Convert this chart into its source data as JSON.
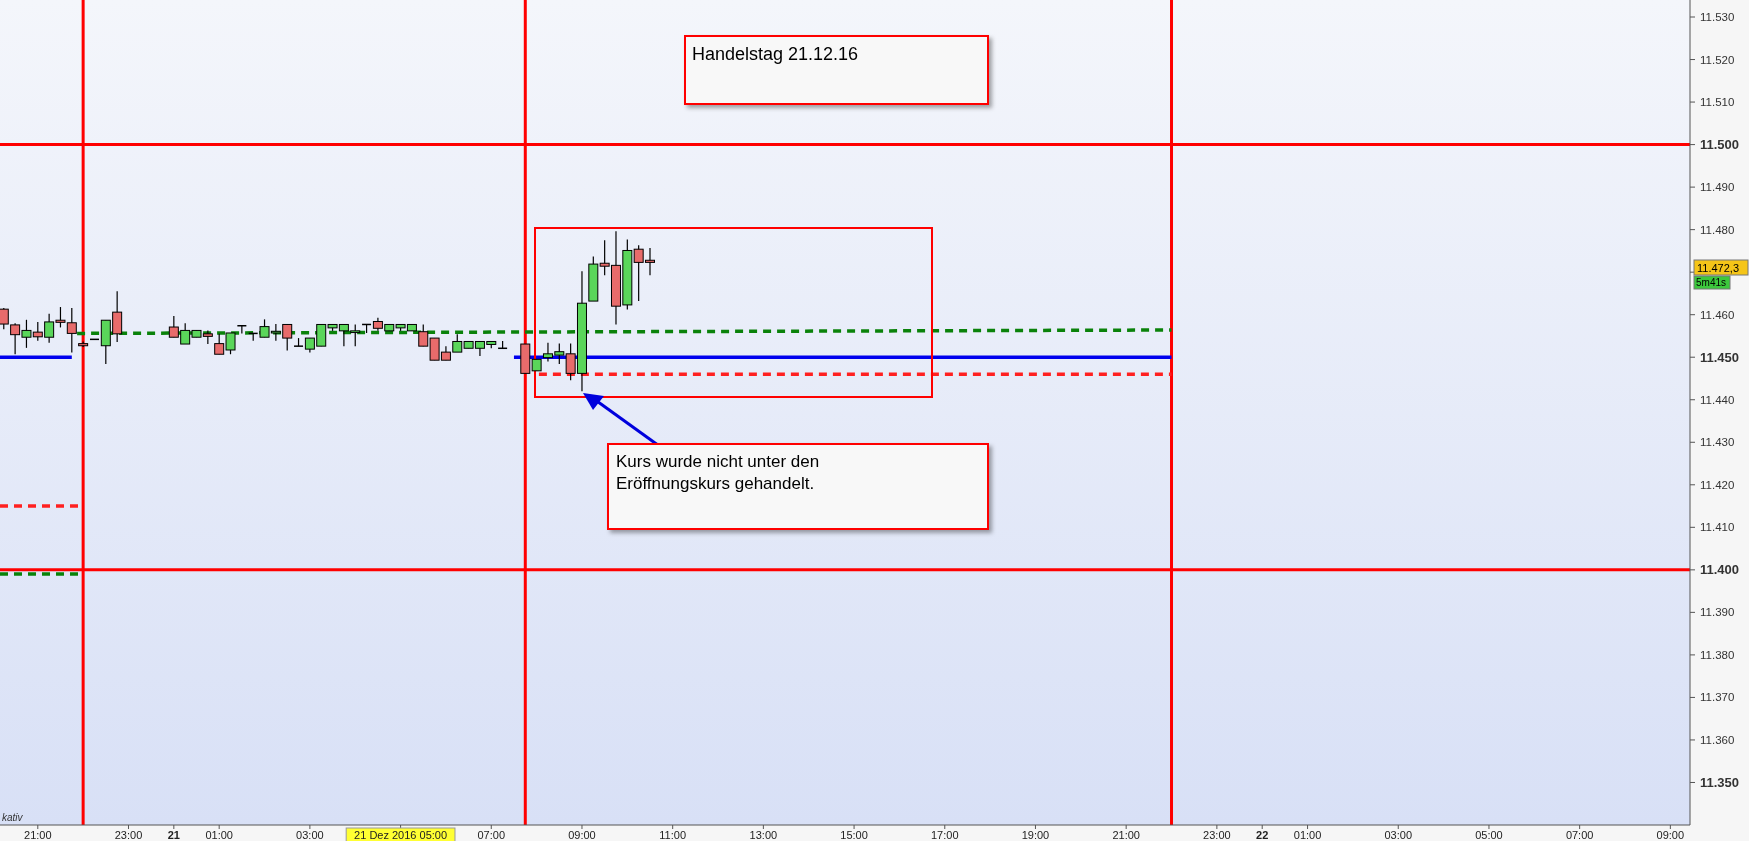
{
  "chart_data": {
    "type": "candlestick",
    "x": [
      "2016-12-20T20:15",
      "2016-12-20T20:30",
      "2016-12-20T20:45",
      "2016-12-20T21:00",
      "2016-12-20T21:15",
      "2016-12-20T21:30",
      "2016-12-20T21:45",
      "2016-12-20T22:00",
      "2016-12-20T22:15",
      "2016-12-20T22:30",
      "2016-12-20T22:45",
      "2016-12-21T00:00",
      "2016-12-21T00:15",
      "2016-12-21T00:30",
      "2016-12-21T00:45",
      "2016-12-21T01:00",
      "2016-12-21T01:15",
      "2016-12-21T01:30",
      "2016-12-21T01:45",
      "2016-12-21T02:00",
      "2016-12-21T02:15",
      "2016-12-21T02:30",
      "2016-12-21T02:45",
      "2016-12-21T03:00",
      "2016-12-21T03:15",
      "2016-12-21T03:30",
      "2016-12-21T03:45",
      "2016-12-21T04:00",
      "2016-12-21T04:15",
      "2016-12-21T04:30",
      "2016-12-21T04:45",
      "2016-12-21T05:00",
      "2016-12-21T05:15",
      "2016-12-21T05:30",
      "2016-12-21T05:45",
      "2016-12-21T06:00",
      "2016-12-21T06:15",
      "2016-12-21T06:30",
      "2016-12-21T06:45",
      "2016-12-21T07:00",
      "2016-12-21T07:15",
      "2016-12-21T07:45",
      "2016-12-21T08:00",
      "2016-12-21T08:15",
      "2016-12-21T08:30",
      "2016-12-21T08:45",
      "2016-12-21T09:00",
      "2016-12-21T09:15",
      "2016-12-21T09:30",
      "2016-12-21T09:45",
      "2016-12-21T10:00",
      "2016-12-21T10:15",
      "2016-12-21T10:30"
    ],
    "ohlc": [
      [
        11461.3,
        11461.6,
        11456.6,
        11457.8
      ],
      [
        11457.6,
        11458.0,
        11450.7,
        11455.3
      ],
      [
        11454.7,
        11458.8,
        11452.2,
        11456.3
      ],
      [
        11455.9,
        11458.3,
        11453.9,
        11454.8
      ],
      [
        11454.7,
        11460.2,
        11453.4,
        11458.3
      ],
      [
        11458.7,
        11461.8,
        11457.0,
        11458.2
      ],
      [
        11458.1,
        11461.6,
        11451.1,
        11455.6
      ],
      [
        11453.2,
        11453.7,
        11452.4,
        11452.7
      ],
      [
        11454.2,
        11454.2,
        11454.2,
        11454.2
      ],
      [
        11452.7,
        11458.7,
        11448.4,
        11458.7
      ],
      [
        11460.6,
        11465.5,
        11453.6,
        11455.5
      ],
      [
        11457.1,
        11459.7,
        11454.7,
        11454.7
      ],
      [
        11453.1,
        11458.0,
        11453.1,
        11456.3
      ],
      [
        11454.7,
        11456.3,
        11454.7,
        11456.3
      ],
      [
        11455.5,
        11456.3,
        11453.1,
        11454.9
      ],
      [
        11453.2,
        11455.5,
        11450.7,
        11450.7
      ],
      [
        11451.7,
        11455.7,
        11450.7,
        11455.7
      ],
      [
        11457.4,
        11457.4,
        11455.6,
        11457.4
      ],
      [
        11455.6,
        11455.6,
        11453.9,
        11455.6
      ],
      [
        11454.7,
        11458.9,
        11454.7,
        11457.2
      ],
      [
        11455.7,
        11457.8,
        11453.9,
        11456.1
      ],
      [
        11457.7,
        11457.7,
        11451.6,
        11454.5
      ],
      [
        11452.6,
        11454.5,
        11452.6,
        11452.6
      ],
      [
        11451.9,
        11454.5,
        11451.1,
        11454.5
      ],
      [
        11452.6,
        11457.7,
        11452.6,
        11457.7
      ],
      [
        11456.9,
        11457.7,
        11456.2,
        11457.7
      ],
      [
        11456.2,
        11457.7,
        11452.6,
        11457.7
      ],
      [
        11455.8,
        11457.7,
        11452.6,
        11456.2
      ],
      [
        11457.7,
        11457.7,
        11455.7,
        11457.7
      ],
      [
        11458.4,
        11459.3,
        11456.2,
        11456.8
      ],
      [
        11456.2,
        11457.7,
        11456.2,
        11457.7
      ],
      [
        11456.9,
        11457.7,
        11456.2,
        11457.7
      ],
      [
        11456.2,
        11457.7,
        11456.2,
        11457.7
      ],
      [
        11456.0,
        11457.7,
        11452.6,
        11452.6
      ],
      [
        11454.5,
        11454.5,
        11449.3,
        11449.3
      ],
      [
        11451.2,
        11452.6,
        11449.3,
        11449.3
      ],
      [
        11451.2,
        11455.4,
        11451.2,
        11453.7
      ],
      [
        11452.1,
        11453.7,
        11452.1,
        11453.7
      ],
      [
        11452.1,
        11453.7,
        11450.3,
        11453.7
      ],
      [
        11453.0,
        11453.7,
        11452.1,
        11453.7
      ],
      [
        11452.1,
        11453.8,
        11452.1,
        11452.1
      ],
      [
        11453.1,
        11453.1,
        11446.2,
        11446.2
      ],
      [
        11446.8,
        11449.5,
        11446.8,
        11449.5
      ],
      [
        11449.9,
        11453.4,
        11449.0,
        11450.8
      ],
      [
        11450.5,
        11453.2,
        11448.4,
        11451.3
      ],
      [
        11450.8,
        11453.2,
        11444.6,
        11446.2
      ],
      [
        11446.2,
        11470.2,
        11442.0,
        11462.7
      ],
      [
        11463.2,
        11473.7,
        11463.2,
        11471.9
      ],
      [
        11472.1,
        11477.5,
        11469.3,
        11471.4
      ],
      [
        11471.6,
        11479.6,
        11457.7,
        11462.0
      ],
      [
        11462.3,
        11477.7,
        11461.2,
        11475.1
      ],
      [
        11475.4,
        11476.3,
        11463.2,
        11472.3
      ],
      [
        11472.8,
        11475.7,
        11469.3,
        11472.3
      ]
    ],
    "series": [
      {
        "type": "line",
        "color": "#0000ee",
        "line_style": "solid",
        "x": [
          "2016-12-20T20:10",
          "2016-12-20T21:45"
        ],
        "values": [
          11450,
          11450
        ]
      },
      {
        "type": "line",
        "color": "#0000ee",
        "line_style": "solid",
        "x": [
          "2016-12-21T07:30",
          "2016-12-21T22:00"
        ],
        "values": [
          11450,
          11450
        ]
      },
      {
        "type": "line",
        "color": "#0a820a",
        "line_style": "dashed",
        "x": [
          "2016-12-20T21:52",
          "2016-12-21T22:00"
        ],
        "values": [
          11455.6,
          11456.4
        ]
      },
      {
        "type": "line",
        "color": "#ff2020",
        "line_style": "dashed",
        "x": [
          "2016-12-21T08:03",
          "2016-12-21T22:00"
        ],
        "values": [
          11446,
          11446
        ]
      },
      {
        "type": "line",
        "color": "#ff2020",
        "line_style": "dashed",
        "x": [
          "2016-12-20T20:10",
          "2016-12-20T22:00"
        ],
        "values": [
          11415,
          11415
        ]
      },
      {
        "type": "line",
        "color": "#0a820a",
        "line_style": "dashed",
        "x": [
          "2016-12-20T20:10",
          "2016-12-20T22:00"
        ],
        "values": [
          11399,
          11399
        ]
      }
    ],
    "ref_lines": [
      {
        "axis": "y",
        "value": 11500,
        "color": "#ff0000"
      },
      {
        "axis": "y",
        "value": 11400,
        "color": "#ff0000"
      },
      {
        "axis": "x",
        "value": "2016-12-20T22:00",
        "color": "#ff0000"
      },
      {
        "axis": "x",
        "value": "2016-12-21T07:45",
        "color": "#ff0000"
      },
      {
        "axis": "x",
        "value": "2016-12-21T22:00",
        "color": "#ff0000"
      }
    ],
    "annotations": [
      "Handelstag 21.12.16",
      "Kurs wurde nicht unter den Eröffnungskurs gehandelt.",
      "11.472,3",
      "5m41s",
      "kativ"
    ],
    "xlim": [
      "2016-12-20T20:10",
      "2016-12-22T09:26"
    ],
    "xticks": [
      {
        "value": "2016-12-20T21:00",
        "label": "21:00"
      },
      {
        "value": "2016-12-20T23:00",
        "label": "23:00"
      },
      {
        "value": "2016-12-21T00:00",
        "label": "21"
      },
      {
        "value": "2016-12-21T01:00",
        "label": "01:00"
      },
      {
        "value": "2016-12-21T03:00",
        "label": "03:00"
      },
      {
        "value": "2016-12-21T05:00",
        "label": "21 Dez 2016 05:00"
      },
      {
        "value": "2016-12-21T07:00",
        "label": "07:00"
      },
      {
        "value": "2016-12-21T09:00",
        "label": "09:00"
      },
      {
        "value": "2016-12-21T11:00",
        "label": "11:00"
      },
      {
        "value": "2016-12-21T13:00",
        "label": "13:00"
      },
      {
        "value": "2016-12-21T15:00",
        "label": "15:00"
      },
      {
        "value": "2016-12-21T17:00",
        "label": "17:00"
      },
      {
        "value": "2016-12-21T19:00",
        "label": "19:00"
      },
      {
        "value": "2016-12-21T21:00",
        "label": "21:00"
      },
      {
        "value": "2016-12-21T23:00",
        "label": "23:00"
      },
      {
        "value": "2016-12-22T00:00",
        "label": "22"
      },
      {
        "value": "2016-12-22T01:00",
        "label": "01:00"
      },
      {
        "value": "2016-12-22T03:00",
        "label": "03:00"
      },
      {
        "value": "2016-12-22T05:00",
        "label": "05:00"
      },
      {
        "value": "2016-12-22T07:00",
        "label": "07:00"
      },
      {
        "value": "2016-12-22T09:00",
        "label": "09:00"
      }
    ],
    "ylim": [
      11340,
      11534
    ],
    "yticks": [
      {
        "value": 11350,
        "label": "11.350"
      },
      {
        "value": 11360,
        "label": "11.360"
      },
      {
        "value": 11370,
        "label": "11.370"
      },
      {
        "value": 11380,
        "label": "11.380"
      },
      {
        "value": 11390,
        "label": "11.390"
      },
      {
        "value": 11400,
        "label": "11.400"
      },
      {
        "value": 11410,
        "label": "11.410"
      },
      {
        "value": 11420,
        "label": "11.420"
      },
      {
        "value": 11430,
        "label": "11.430"
      },
      {
        "value": 11440,
        "label": "11.440"
      },
      {
        "value": 11450,
        "label": "11.450"
      },
      {
        "value": 11460,
        "label": "11.460"
      },
      {
        "value": 11470,
        "label": null
      },
      {
        "value": 11480,
        "label": "11.480"
      },
      {
        "value": 11490,
        "label": "11.490"
      },
      {
        "value": 11500,
        "label": "11.500"
      },
      {
        "value": 11510,
        "label": "11.510"
      },
      {
        "value": 11520,
        "label": "11.520"
      },
      {
        "value": 11530,
        "label": "11.530"
      }
    ],
    "tick_labels": "xy"
  }
}
